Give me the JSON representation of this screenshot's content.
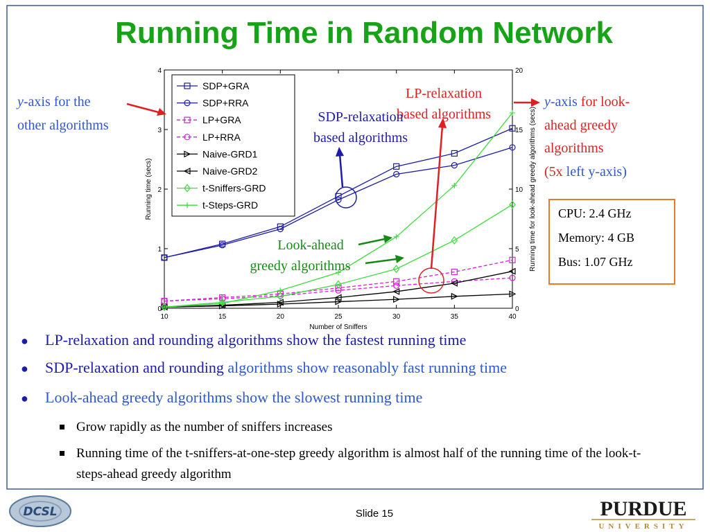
{
  "title": "Running Time in Random Network",
  "chart_data": {
    "type": "line",
    "x_label": "Number of Sniffers",
    "y_label": "Running time (secs)",
    "y2_label": "Running time for look-ahead greedy algorithms (secs)",
    "x": [
      10,
      15,
      20,
      25,
      30,
      35,
      40
    ],
    "xlim": [
      10,
      40
    ],
    "xticks": [
      10,
      15,
      20,
      25,
      30,
      35,
      40
    ],
    "ylim": [
      0,
      4
    ],
    "yticks": [
      0,
      1,
      2,
      3,
      4
    ],
    "y2lim": [
      0,
      20
    ],
    "y2ticks": [
      0,
      5,
      10,
      15,
      20
    ],
    "legend": "upper left",
    "series": [
      {
        "name": "SDP+GRA",
        "color": "#1c1ca8",
        "marker": "square",
        "linestyle": "solid",
        "values": [
          0.85,
          1.08,
          1.37,
          1.88,
          2.38,
          2.6,
          3.02
        ]
      },
      {
        "name": "SDP+RRA",
        "color": "#1c1ca8",
        "marker": "circle",
        "linestyle": "solid",
        "values": [
          0.85,
          1.06,
          1.33,
          1.82,
          2.25,
          2.4,
          2.7
        ]
      },
      {
        "name": "LP+GRA",
        "color": "#d81ed8",
        "marker": "square",
        "linestyle": "dashed",
        "values": [
          0.12,
          0.18,
          0.24,
          0.34,
          0.45,
          0.61,
          0.81
        ]
      },
      {
        "name": "LP+RRA",
        "color": "#d81ed8",
        "marker": "circle",
        "linestyle": "dashed",
        "values": [
          0.12,
          0.16,
          0.21,
          0.3,
          0.38,
          0.45,
          0.51
        ]
      },
      {
        "name": "Naive-GRD1",
        "color": "#000000",
        "marker": "triangle-right",
        "linestyle": "solid",
        "values": [
          0.02,
          0.04,
          0.07,
          0.11,
          0.15,
          0.2,
          0.24
        ]
      },
      {
        "name": "Naive-GRD2",
        "color": "#000000",
        "marker": "triangle-left",
        "linestyle": "solid",
        "values": [
          0.02,
          0.05,
          0.1,
          0.18,
          0.28,
          0.42,
          0.62
        ]
      },
      {
        "name": "t-Sniffers-GRD",
        "color": "#3cdc3c",
        "marker": "diamond",
        "linestyle": "solid",
        "axis": "y2",
        "values": [
          0.1,
          0.5,
          1.0,
          2.0,
          3.3,
          5.7,
          8.7
        ]
      },
      {
        "name": "t-Steps-GRD",
        "color": "#3cdc3c",
        "marker": "plus",
        "linestyle": "solid",
        "axis": "y2",
        "values": [
          0.1,
          0.4,
          1.5,
          3.0,
          6.0,
          10.3,
          16.4
        ]
      }
    ]
  },
  "annotations": {
    "left_axis": [
      "y",
      "-axis for the",
      "other algorithms"
    ],
    "lp": [
      "LP-relaxation",
      "based algorithms"
    ],
    "sdp": [
      "SDP-relaxation",
      "based algorithms"
    ],
    "greedy": [
      "Look-ahead",
      "greedy algorithms"
    ],
    "right_axis": [
      "y",
      "-axis",
      "for look-",
      "ahead greedy",
      "algorithms",
      "(5x",
      "left y-axis)"
    ]
  },
  "specs": [
    "CPU: 2.4 GHz",
    "Memory: 4 GB",
    "Bus: 1.07 GHz"
  ],
  "bullets": [
    [
      "LP-relaxation and rounding algorithms show the fastest running time"
    ],
    [
      "SDP-relaxation and rounding",
      "algorithms show reasonably fast running time"
    ],
    [
      "Look-ahead greedy algorithms show the slowest running time"
    ]
  ],
  "sub_bullets": [
    "Grow rapidly as the number of sniffers increases",
    "Running time of the t-sniffers-at-one-step greedy algorithm is almost half of the running time of the look-t-steps-ahead greedy algorithm"
  ],
  "footer": {
    "slide": "Slide 15",
    "logo_left": "DCSL",
    "logo_right": [
      "PURDUE",
      "UNIVERSITY"
    ]
  }
}
